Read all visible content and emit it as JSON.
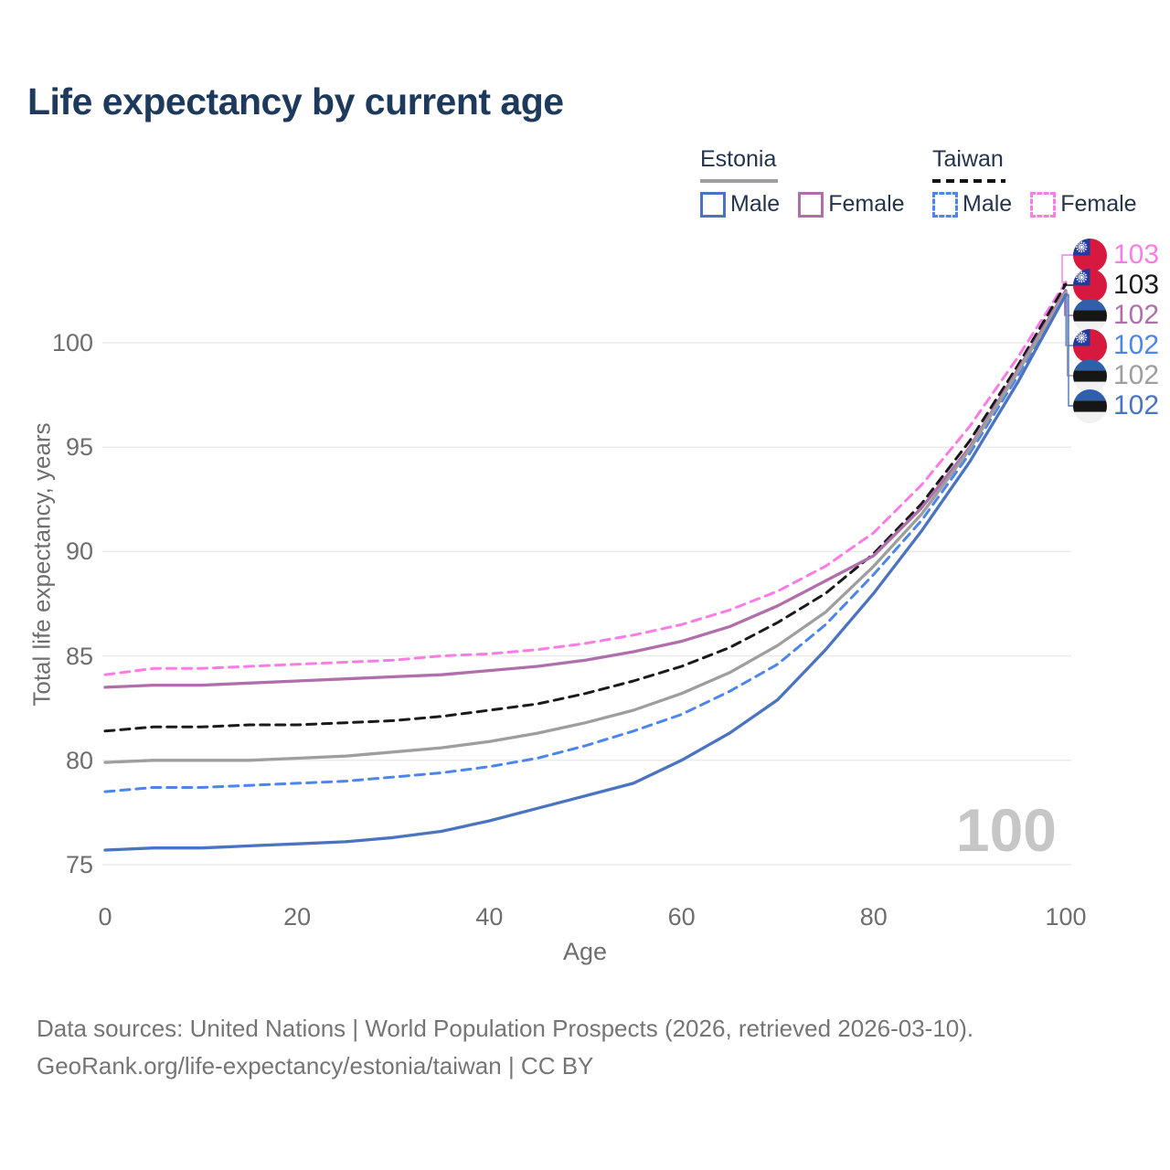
{
  "title": "Life expectancy by current age",
  "legend": {
    "groups": [
      {
        "label": "Estonia",
        "line_style": "solid",
        "line_color": "#9e9e9e",
        "items": [
          {
            "label": "Male",
            "color": "#4a74c0",
            "dashed": false
          },
          {
            "label": "Female",
            "color": "#b06fab",
            "dashed": false
          }
        ]
      },
      {
        "label": "Taiwan",
        "line_style": "dashed",
        "line_color": "#141414",
        "items": [
          {
            "label": "Male",
            "color": "#4d86ea",
            "dashed": true
          },
          {
            "label": "Female",
            "color": "#fb7ce4",
            "dashed": true
          }
        ]
      }
    ]
  },
  "watermark": "100",
  "end_labels": [
    {
      "flag": "taiwan",
      "value": "103",
      "color": "#fb7ce4"
    },
    {
      "flag": "taiwan",
      "value": "103",
      "color": "#1a1a1a"
    },
    {
      "flag": "estonia",
      "value": "102",
      "color": "#b06fab"
    },
    {
      "flag": "taiwan",
      "value": "102",
      "color": "#4d86ea"
    },
    {
      "flag": "estonia",
      "value": "102",
      "color": "#9e9e9e"
    },
    {
      "flag": "estonia",
      "value": "102",
      "color": "#4a74c0"
    }
  ],
  "chart_data": {
    "type": "line",
    "title": "Life expectancy by current age",
    "xlabel": "Age",
    "ylabel": "Total life expectancy, years",
    "xlim": [
      0,
      100
    ],
    "ylim": [
      74,
      104
    ],
    "xticks": [
      0,
      20,
      40,
      60,
      80,
      100
    ],
    "yticks": [
      75,
      80,
      85,
      90,
      95,
      100
    ],
    "grid": "horizontal",
    "legend_position": "top-right",
    "x": [
      0,
      5,
      10,
      15,
      20,
      25,
      30,
      35,
      40,
      45,
      50,
      55,
      60,
      65,
      70,
      75,
      80,
      85,
      90,
      95,
      100
    ],
    "series": [
      {
        "name": "Taiwan Female",
        "country": "Taiwan",
        "sex": "Female",
        "color": "#fb7ce4",
        "dashed": true,
        "end_label": "103",
        "values": [
          84.1,
          84.4,
          84.4,
          84.5,
          84.6,
          84.7,
          84.8,
          85.0,
          85.1,
          85.3,
          85.6,
          86.0,
          86.5,
          87.2,
          88.1,
          89.3,
          90.9,
          93.2,
          96.0,
          99.3,
          102.9
        ]
      },
      {
        "name": "Taiwan Both sexes",
        "country": "Taiwan",
        "sex": "Both",
        "color": "#1a1a1a",
        "dashed": true,
        "end_label": "103",
        "values": [
          81.4,
          81.6,
          81.6,
          81.7,
          81.7,
          81.8,
          81.9,
          82.1,
          82.4,
          82.7,
          83.2,
          83.8,
          84.5,
          85.4,
          86.6,
          88.0,
          89.9,
          92.3,
          95.3,
          98.9,
          102.8
        ]
      },
      {
        "name": "Estonia Female",
        "country": "Estonia",
        "sex": "Female",
        "color": "#b06fab",
        "dashed": false,
        "end_label": "102",
        "values": [
          83.5,
          83.6,
          83.6,
          83.7,
          83.8,
          83.9,
          84.0,
          84.1,
          84.3,
          84.5,
          84.8,
          85.2,
          85.7,
          86.4,
          87.4,
          88.6,
          89.8,
          92.1,
          95.0,
          98.7,
          102.5
        ]
      },
      {
        "name": "Taiwan Male",
        "country": "Taiwan",
        "sex": "Male",
        "color": "#4d86ea",
        "dashed": true,
        "end_label": "102",
        "values": [
          78.5,
          78.7,
          78.7,
          78.8,
          78.9,
          79.0,
          79.2,
          79.4,
          79.7,
          80.1,
          80.7,
          81.4,
          82.2,
          83.3,
          84.6,
          86.5,
          88.9,
          91.5,
          94.7,
          98.4,
          102.4
        ]
      },
      {
        "name": "Estonia Both sexes",
        "country": "Estonia",
        "sex": "Both",
        "color": "#9e9e9e",
        "dashed": false,
        "end_label": "102",
        "values": [
          79.9,
          80.0,
          80.0,
          80.0,
          80.1,
          80.2,
          80.4,
          80.6,
          80.9,
          81.3,
          81.8,
          82.4,
          83.2,
          84.2,
          85.5,
          87.1,
          89.3,
          91.8,
          94.9,
          98.6,
          102.4
        ]
      },
      {
        "name": "Estonia Male",
        "country": "Estonia",
        "sex": "Male",
        "color": "#4a74c0",
        "dashed": false,
        "end_label": "102",
        "values": [
          75.7,
          75.8,
          75.8,
          75.9,
          76.0,
          76.1,
          76.3,
          76.6,
          77.1,
          77.7,
          78.3,
          78.9,
          80.0,
          81.3,
          82.9,
          85.3,
          88.0,
          91.0,
          94.3,
          98.1,
          102.3
        ]
      }
    ]
  },
  "footer": {
    "line1": "Data sources: United Nations | World Population Prospects (2026, retrieved 2026-03-10).",
    "line2": "GeoRank.org/life-expectancy/estonia/taiwan | CC BY"
  }
}
